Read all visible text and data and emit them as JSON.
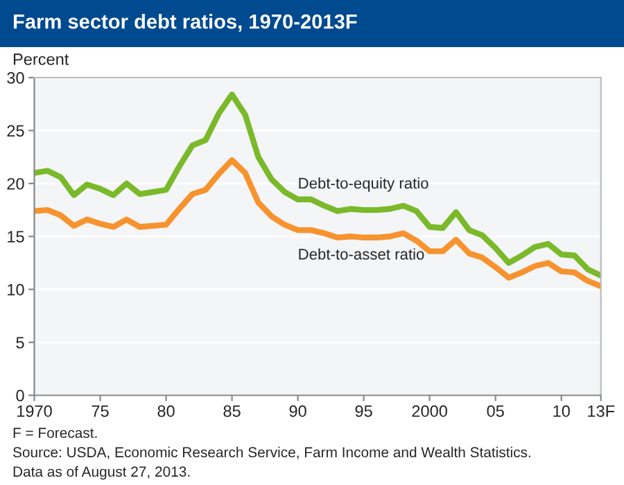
{
  "chart_data": {
    "type": "line",
    "title": "Farm sector debt ratios, 1970-2013F",
    "ylabel": "Percent",
    "categories": [
      "1970",
      null,
      null,
      null,
      null,
      "75",
      null,
      null,
      null,
      null,
      "80",
      null,
      null,
      null,
      null,
      "85",
      null,
      null,
      null,
      null,
      "90",
      null,
      null,
      null,
      null,
      "95",
      null,
      null,
      null,
      null,
      "2000",
      null,
      null,
      null,
      null,
      "05",
      null,
      null,
      null,
      null,
      "10",
      null,
      null,
      "13F"
    ],
    "series": [
      {
        "name": "Debt-to-equity ratio",
        "color": "#7ab929",
        "values": [
          21.0,
          21.2,
          20.6,
          18.9,
          19.9,
          19.5,
          18.9,
          20.0,
          19.0,
          19.2,
          19.4,
          21.6,
          23.6,
          24.1,
          26.6,
          28.4,
          26.5,
          22.5,
          20.4,
          19.2,
          18.5,
          18.5,
          17.9,
          17.4,
          17.6,
          17.5,
          17.5,
          17.6,
          17.9,
          17.4,
          15.9,
          15.8,
          17.3,
          15.6,
          15.1,
          13.9,
          12.5,
          13.2,
          14.0,
          14.3,
          13.3,
          13.2,
          11.9,
          11.3
        ]
      },
      {
        "name": "Debt-to-asset ratio",
        "color": "#f7932f",
        "values": [
          17.4,
          17.5,
          17.0,
          16.0,
          16.6,
          16.2,
          15.9,
          16.6,
          15.9,
          16.0,
          16.1,
          17.6,
          19.0,
          19.4,
          20.9,
          22.2,
          21.0,
          18.2,
          16.9,
          16.1,
          15.6,
          15.6,
          15.3,
          14.9,
          15.0,
          14.9,
          14.9,
          15.0,
          15.3,
          14.6,
          13.6,
          13.6,
          14.7,
          13.4,
          13.0,
          12.1,
          11.1,
          11.6,
          12.2,
          12.5,
          11.7,
          11.6,
          10.8,
          10.3
        ]
      }
    ],
    "ylim": [
      0,
      30
    ],
    "yticks": [
      0,
      5,
      10,
      15,
      20,
      25,
      30
    ],
    "grid": "y",
    "legend": false,
    "marker": "none",
    "line_style": "solid",
    "annotations": [
      "F = Forecast.",
      "Source: USDA, Economic Research Service, Farm Income and Wealth Statistics.",
      "Data as of August 27, 2013."
    ]
  }
}
